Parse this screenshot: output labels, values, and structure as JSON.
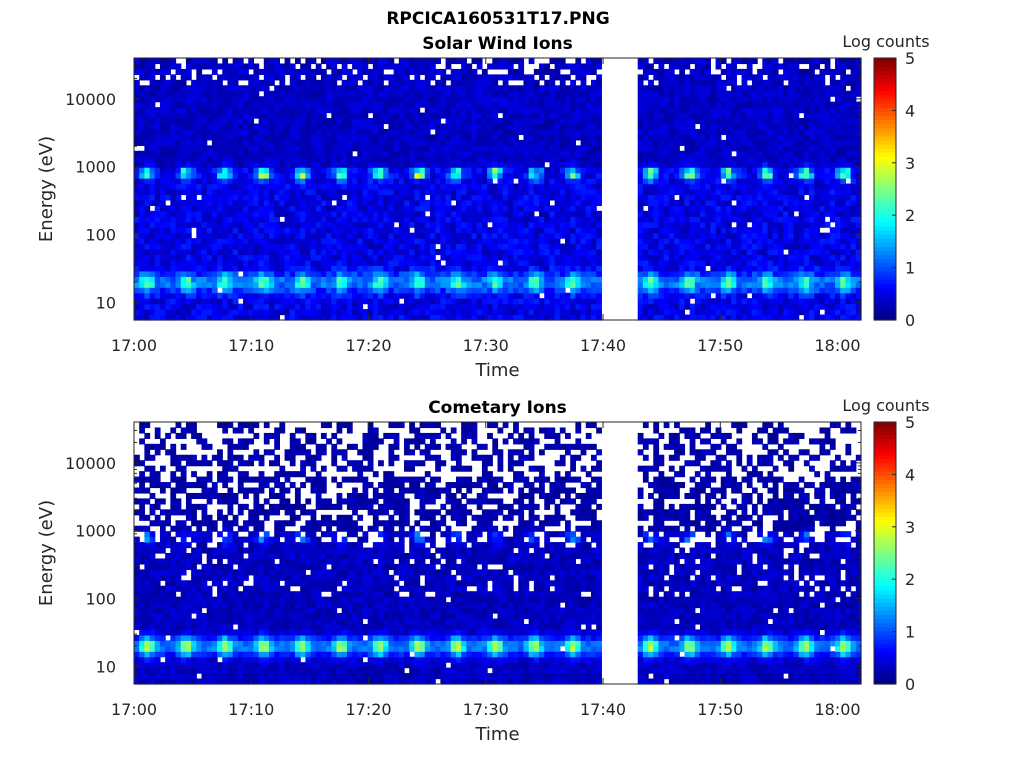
{
  "figure_title": "RPCICA160531T17.PNG",
  "chart_data": [
    {
      "type": "heatmap",
      "title": "Solar Wind Ions",
      "xlabel": "Time",
      "ylabel": "Energy (eV)",
      "x_ticks": [
        "17:00",
        "17:10",
        "17:20",
        "17:30",
        "17:40",
        "17:50",
        "18:00"
      ],
      "x_range_minutes": [
        0,
        62
      ],
      "y_scale": "log",
      "y_ticks": [
        "10",
        "100",
        "1000",
        "10000"
      ],
      "y_range_eV": [
        5.5,
        40000
      ],
      "data_gap_minutes": [
        39.7,
        43
      ],
      "colorbar": {
        "label": "Log counts",
        "range": [
          0,
          5
        ],
        "ticks": [
          "0",
          "1",
          "2",
          "3",
          "4",
          "5"
        ]
      },
      "features": {
        "low_energy_band_eV": 20,
        "low_energy_band_peak_log_counts": 1.9,
        "high_energy_band_eV": 800,
        "high_energy_band_peak_log_counts": 2.9,
        "pulse_period_minutes": 3.3,
        "background_log_counts": 0.5
      }
    },
    {
      "type": "heatmap",
      "title": "Cometary Ions",
      "xlabel": "Time",
      "ylabel": "Energy (eV)",
      "x_ticks": [
        "17:00",
        "17:10",
        "17:20",
        "17:30",
        "17:40",
        "17:50",
        "18:00"
      ],
      "x_range_minutes": [
        0,
        62
      ],
      "y_scale": "log",
      "y_ticks": [
        "10",
        "100",
        "1000",
        "10000"
      ],
      "y_range_eV": [
        5.5,
        40000
      ],
      "data_gap_minutes": [
        39.7,
        43
      ],
      "colorbar": {
        "label": "Log counts",
        "range": [
          0,
          5
        ],
        "ticks": [
          "0",
          "1",
          "2",
          "3",
          "4",
          "5"
        ]
      },
      "features": {
        "low_energy_band_eV": 20,
        "low_energy_band_peak_log_counts": 2.6,
        "high_energy_band_eV": 800,
        "high_energy_band_peak_log_counts": 1.2,
        "pulse_period_minutes": 3.3,
        "background_log_counts": 0.3
      }
    }
  ]
}
